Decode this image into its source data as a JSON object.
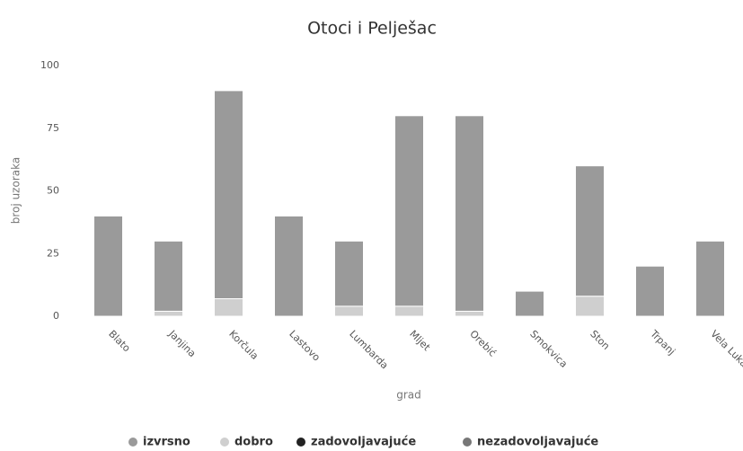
{
  "chart_data": {
    "type": "bar",
    "stacked": true,
    "title": "Otoci i Pelješac",
    "x_label": "grad",
    "y_label": "broj uzoraka",
    "categories": [
      "Blato",
      "Janjina",
      "Korčula",
      "Lastovo",
      "Lumbarda",
      "Mljet",
      "Orebić",
      "Smokvica",
      "Ston",
      "Trpanj",
      "Vela Luka"
    ],
    "series": [
      {
        "name": "izvrsno",
        "color": "#9a9a9a",
        "values": [
          40,
          28,
          83,
          40,
          26,
          76,
          78,
          10,
          52,
          20,
          30
        ]
      },
      {
        "name": "dobro",
        "color": "#cfcfcf",
        "values": [
          0,
          2,
          7,
          0,
          4,
          4,
          2,
          0,
          8,
          0,
          0
        ]
      },
      {
        "name": "zadovoljavajuće",
        "color": "#222222",
        "values": [
          0,
          0,
          0,
          0,
          0,
          0,
          0,
          0,
          0,
          0,
          0
        ]
      },
      {
        "name": "nezadovoljavajuće",
        "color": "#777777",
        "values": [
          0,
          0,
          0,
          0,
          0,
          0,
          0,
          0,
          0,
          0,
          0
        ]
      }
    ],
    "ylim": [
      0,
      100
    ],
    "yticks": [
      0,
      25,
      50,
      75,
      100
    ],
    "grid": false
  }
}
